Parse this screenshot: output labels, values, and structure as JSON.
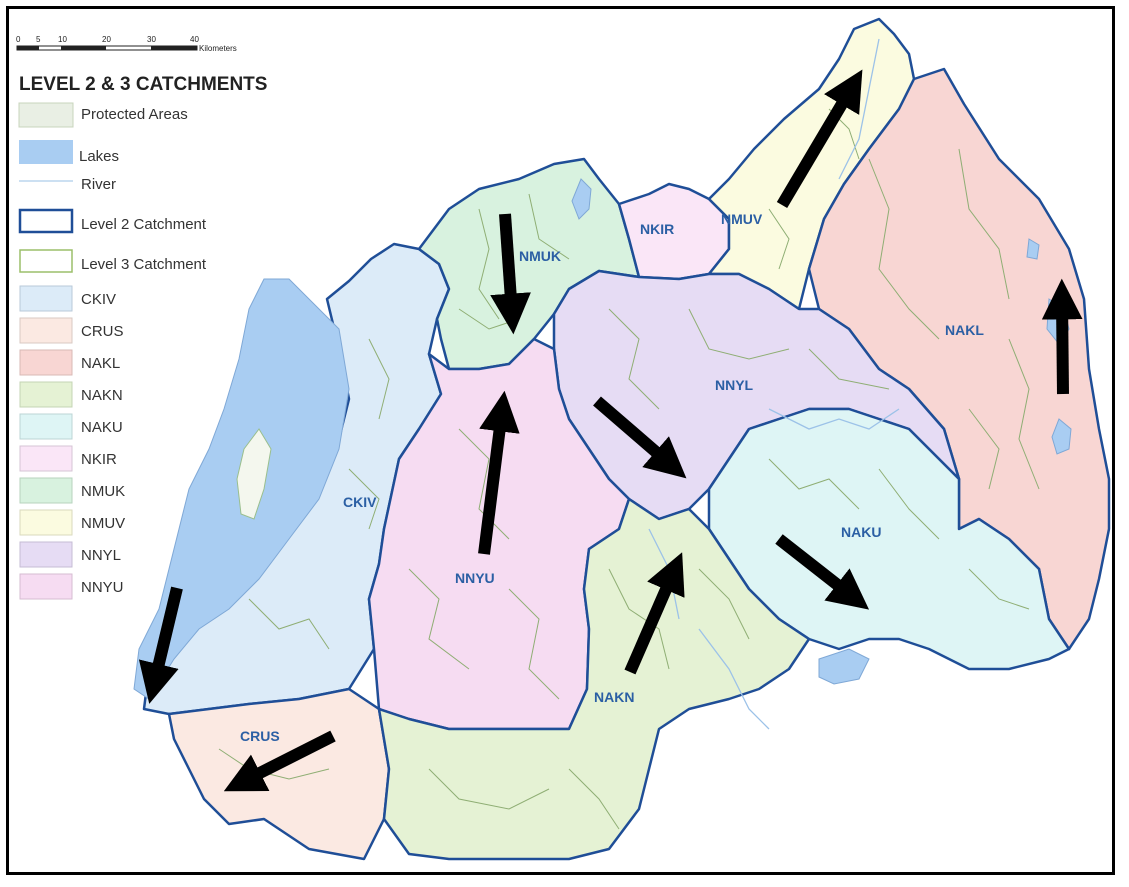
{
  "scale_bar": {
    "ticks": [
      "0",
      "5",
      "10",
      "20",
      "30",
      "40"
    ],
    "unit": "Kilometers"
  },
  "legend": {
    "title": "LEVEL 2 & 3 CATCHMENTS",
    "items": [
      {
        "label": "Protected Areas",
        "color": "#e9efe4"
      },
      {
        "label": "Lakes",
        "color": "#a9cdf2"
      },
      {
        "label": "River",
        "color": "#bcd6ee"
      },
      {
        "label": "Level 2 Catchment",
        "color": "#1f4e97"
      },
      {
        "label": "Level 3 Catchment",
        "color": "#9bbf6a"
      },
      {
        "label": "CKIV",
        "color": "#dcebf8"
      },
      {
        "label": "CRUS",
        "color": "#fbe9e2"
      },
      {
        "label": "NAKL",
        "color": "#f8d6d3"
      },
      {
        "label": "NAKN",
        "color": "#e5f2d4"
      },
      {
        "label": "NAKU",
        "color": "#def5f5"
      },
      {
        "label": "NKIR",
        "color": "#fae6f7"
      },
      {
        "label": "NMUK",
        "color": "#d8f2df"
      },
      {
        "label": "NMUV",
        "color": "#fbfbe0"
      },
      {
        "label": "NNYL",
        "color": "#e6dcf4"
      },
      {
        "label": "NNYU",
        "color": "#f6dcf2"
      }
    ]
  },
  "regions": [
    {
      "code": "NMUK"
    },
    {
      "code": "NKIR"
    },
    {
      "code": "NMUV"
    },
    {
      "code": "NAKL"
    },
    {
      "code": "NNYL"
    },
    {
      "code": "CKIV"
    },
    {
      "code": "NAKU"
    },
    {
      "code": "NNYU"
    },
    {
      "code": "NAKN"
    },
    {
      "code": "CRUS"
    }
  ],
  "colors": {
    "border": "#1f4e97",
    "subcatchment": "#8fae74",
    "lake": "#a9cdf2",
    "arrow": "#000000"
  }
}
